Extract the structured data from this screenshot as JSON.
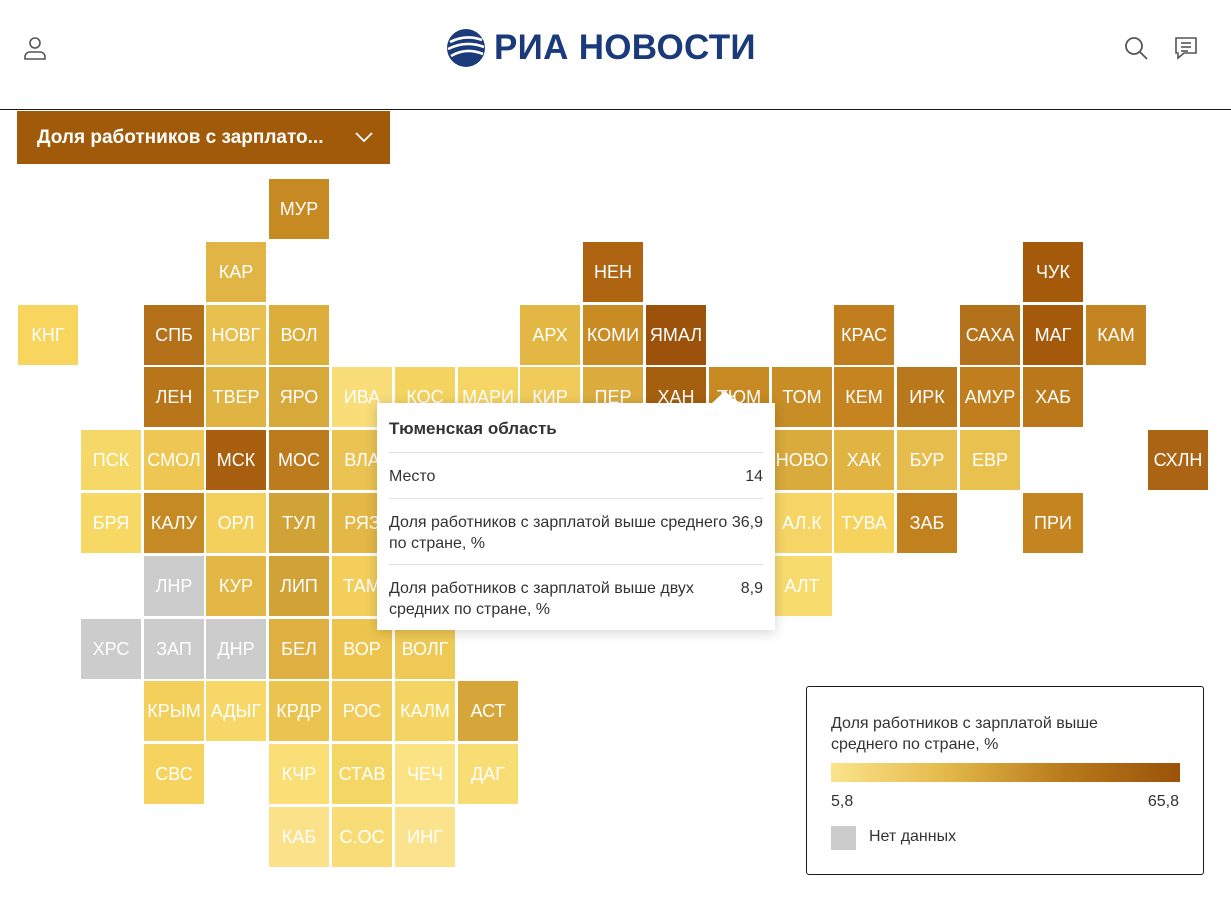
{
  "header": {
    "brand": "РИА НОВОСТИ",
    "icons": [
      "user-icon",
      "search-icon",
      "chat-icon"
    ],
    "brand_color": "#1a3a7a"
  },
  "selector": {
    "label": "Доля работников с зарплато...",
    "color": "#a05a0a"
  },
  "tiles": [
    {
      "label": "МУР",
      "color": "#c78a22",
      "col": 4,
      "row": 0
    },
    {
      "label": "КАР",
      "color": "#e1b545",
      "col": 3,
      "row": 1
    },
    {
      "label": "НЕН",
      "color": "#ae6410",
      "col": 9,
      "row": 1
    },
    {
      "label": "ЧУК",
      "color": "#a55a0b",
      "col": 16,
      "row": 1
    },
    {
      "label": "КНГ",
      "color": "#f7d55e",
      "col": 0,
      "row": 2
    },
    {
      "label": "СПБ",
      "color": "#b5701a",
      "col": 2,
      "row": 2
    },
    {
      "label": "НОВГ",
      "color": "#e8c050",
      "col": 3,
      "row": 2
    },
    {
      "label": "ВОЛ",
      "color": "#dcae3c",
      "col": 4,
      "row": 2
    },
    {
      "label": "АРХ",
      "color": "#e3b743",
      "col": 8,
      "row": 2
    },
    {
      "label": "КОМИ",
      "color": "#c98c24",
      "col": 9,
      "row": 2
    },
    {
      "label": "ЯМАЛ",
      "color": "#9c520a",
      "col": 10,
      "row": 2
    },
    {
      "label": "КРАС",
      "color": "#c07e1e",
      "col": 13,
      "row": 2
    },
    {
      "label": "САХА",
      "color": "#b2711a",
      "col": 15,
      "row": 2
    },
    {
      "label": "МАГ",
      "color": "#a55a0b",
      "col": 16,
      "row": 2
    },
    {
      "label": "КАМ",
      "color": "#c48421",
      "col": 17,
      "row": 2
    },
    {
      "label": "ЛЕН",
      "color": "#b87519",
      "col": 2,
      "row": 3
    },
    {
      "label": "ТВЕР",
      "color": "#e0b443",
      "col": 3,
      "row": 3
    },
    {
      "label": "ЯРО",
      "color": "#d7a83a",
      "col": 4,
      "row": 3
    },
    {
      "label": "ИВА",
      "color": "#f8dd79",
      "col": 5,
      "row": 3
    },
    {
      "label": "КОС",
      "color": "#f4d360",
      "col": 6,
      "row": 3
    },
    {
      "label": "МАРИ",
      "color": "#f5d665",
      "col": 7,
      "row": 3
    },
    {
      "label": "КИР",
      "color": "#f0cb5a",
      "col": 8,
      "row": 3
    },
    {
      "label": "ПЕР",
      "color": "#dcac3f",
      "col": 9,
      "row": 3
    },
    {
      "label": "ХАН",
      "color": "#a5600f",
      "col": 10,
      "row": 3
    },
    {
      "label": "ТЮМ",
      "color": "#c78a22",
      "col": 11,
      "row": 3
    },
    {
      "label": "ТОМ",
      "color": "#c98d25",
      "col": 12,
      "row": 3
    },
    {
      "label": "КЕМ",
      "color": "#c58420",
      "col": 13,
      "row": 3
    },
    {
      "label": "ИРК",
      "color": "#b9781b",
      "col": 14,
      "row": 3
    },
    {
      "label": "АМУР",
      "color": "#c07e1e",
      "col": 15,
      "row": 3
    },
    {
      "label": "ХАБ",
      "color": "#ba781a",
      "col": 16,
      "row": 3
    },
    {
      "label": "ПСК",
      "color": "#f6d869",
      "col": 1,
      "row": 4
    },
    {
      "label": "СМОЛ",
      "color": "#edc653",
      "col": 2,
      "row": 4
    },
    {
      "label": "МСК",
      "color": "#a85f10",
      "col": 3,
      "row": 4
    },
    {
      "label": "МОС",
      "color": "#bc7b1d",
      "col": 4,
      "row": 4
    },
    {
      "label": "ВЛА",
      "color": "#eac352",
      "col": 5,
      "row": 4
    },
    {
      "label": "НОВО",
      "color": "#d9aa3c",
      "col": 12,
      "row": 4
    },
    {
      "label": "ХАК",
      "color": "#e0b342",
      "col": 13,
      "row": 4
    },
    {
      "label": "БУР",
      "color": "#e6bc4d",
      "col": 14,
      "row": 4
    },
    {
      "label": "ЕВР",
      "color": "#e9c14f",
      "col": 15,
      "row": 4
    },
    {
      "label": "СХЛН",
      "color": "#ab6413",
      "col": 18,
      "row": 4
    },
    {
      "label": "БРЯ",
      "color": "#f8d865",
      "col": 1,
      "row": 5
    },
    {
      "label": "КАЛУ",
      "color": "#c58a23",
      "col": 2,
      "row": 5
    },
    {
      "label": "ОРЛ",
      "color": "#f3cf5b",
      "col": 3,
      "row": 5
    },
    {
      "label": "ТУЛ",
      "color": "#d1a236",
      "col": 4,
      "row": 5
    },
    {
      "label": "РЯЗ",
      "color": "#e4b846",
      "col": 5,
      "row": 5
    },
    {
      "label": "АЛ.К",
      "color": "#f6d566",
      "col": 12,
      "row": 5
    },
    {
      "label": "ТУВА",
      "color": "#f6d35c",
      "col": 13,
      "row": 5
    },
    {
      "label": "ЗАБ",
      "color": "#c2811f",
      "col": 14,
      "row": 5
    },
    {
      "label": "ПРИ",
      "color": "#c48521",
      "col": 16,
      "row": 5
    },
    {
      "label": "ЛНР",
      "color": "#cccccc",
      "col": 2,
      "row": 6
    },
    {
      "label": "КУР",
      "color": "#e3b746",
      "col": 3,
      "row": 6
    },
    {
      "label": "ЛИП",
      "color": "#d1a236",
      "col": 4,
      "row": 6
    },
    {
      "label": "ТАМ",
      "color": "#f3ce5b",
      "col": 5,
      "row": 6
    },
    {
      "label": "АЛТ",
      "color": "#f8db6d",
      "col": 12,
      "row": 6
    },
    {
      "label": "ХРС",
      "color": "#cccccc",
      "col": 1,
      "row": 7
    },
    {
      "label": "ЗАП",
      "color": "#cccccc",
      "col": 2,
      "row": 7
    },
    {
      "label": "ДНР",
      "color": "#cccccc",
      "col": 3,
      "row": 7
    },
    {
      "label": "БЕЛ",
      "color": "#dfb041",
      "col": 4,
      "row": 7
    },
    {
      "label": "ВОР",
      "color": "#edc54e",
      "col": 5,
      "row": 7
    },
    {
      "label": "ВОЛГ",
      "color": "#efc955",
      "col": 6,
      "row": 7
    },
    {
      "label": "КРЫМ",
      "color": "#f3d05c",
      "col": 2,
      "row": 8
    },
    {
      "label": "АДЫГ",
      "color": "#f6d768",
      "col": 3,
      "row": 8
    },
    {
      "label": "КРДР",
      "color": "#eac44f",
      "col": 4,
      "row": 8
    },
    {
      "label": "РОС",
      "color": "#f1cc5b",
      "col": 5,
      "row": 8
    },
    {
      "label": "КАЛМ",
      "color": "#f4d462",
      "col": 6,
      "row": 8
    },
    {
      "label": "АСТ",
      "color": "#d6a63a",
      "col": 7,
      "row": 8
    },
    {
      "label": "СВС",
      "color": "#f5d35e",
      "col": 2,
      "row": 9
    },
    {
      "label": "КЧР",
      "color": "#f9df76",
      "col": 4,
      "row": 9
    },
    {
      "label": "СТАВ",
      "color": "#f4d665",
      "col": 5,
      "row": 9
    },
    {
      "label": "ЧЕЧ",
      "color": "#fbe282",
      "col": 6,
      "row": 9
    },
    {
      "label": "ДАГ",
      "color": "#f8dc74",
      "col": 7,
      "row": 9
    },
    {
      "label": "КАБ",
      "color": "#fbe18a",
      "col": 4,
      "row": 10
    },
    {
      "label": "С.ОС",
      "color": "#f8dd77",
      "col": 5,
      "row": 10
    },
    {
      "label": "ИНГ",
      "color": "#fbe38e",
      "col": 6,
      "row": 10
    }
  ],
  "tooltip": {
    "title": "Тюменская область",
    "rows": [
      {
        "label": "Место",
        "value": "14"
      },
      {
        "label": "Доля работников с зарплатой выше среднего по стране, %",
        "value": "36,9"
      },
      {
        "label": "Доля работников с зарплатой выше двух средних по стране, %",
        "value": "8,9"
      }
    ]
  },
  "legend": {
    "title": "Доля работников с зарплатой выше среднего по стране, %",
    "min": "5,8",
    "max": "65,8",
    "no_data": "Нет данных",
    "no_data_color": "#cccccc",
    "gradient": [
      "#fbe38b",
      "#e3b84a",
      "#b97a1c",
      "#9a5209"
    ]
  }
}
